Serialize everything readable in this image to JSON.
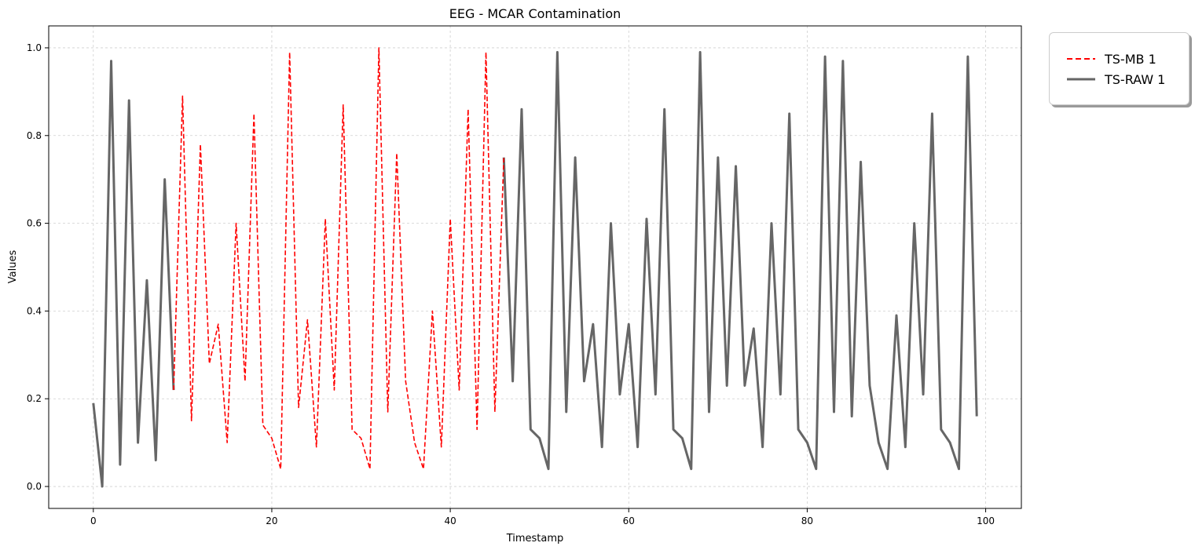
{
  "chart_data": {
    "type": "line",
    "title": "EEG - MCAR Contamination",
    "xlabel": "Timestamp",
    "ylabel": "Values",
    "xlim": [
      -5,
      104
    ],
    "ylim": [
      -0.05,
      1.05
    ],
    "x_ticks": [
      0,
      20,
      40,
      60,
      80,
      100
    ],
    "y_ticks": [
      0.0,
      0.2,
      0.4,
      0.6,
      0.8,
      1.0
    ],
    "x_tick_labels": [
      "0",
      "20",
      "40",
      "60",
      "80",
      "100"
    ],
    "y_tick_labels": [
      "0.0",
      "0.2",
      "0.4",
      "0.6",
      "0.8",
      "1.0"
    ],
    "grid": true,
    "legend_position": "outside-top-right",
    "series": [
      {
        "name": "TS-MB 1",
        "color": "#ff0000",
        "style": "dashed",
        "x": [
          9,
          10,
          11,
          12,
          13,
          14,
          15,
          16,
          17,
          18,
          19,
          20,
          21,
          22,
          23,
          24,
          25,
          26,
          27,
          28,
          29,
          30,
          31,
          32,
          33,
          34,
          35,
          36,
          37,
          38,
          39,
          40,
          41,
          42,
          43,
          44,
          45,
          46
        ],
        "values": [
          0.22,
          0.89,
          0.15,
          0.78,
          0.28,
          0.37,
          0.1,
          0.6,
          0.24,
          0.85,
          0.14,
          0.11,
          0.04,
          0.99,
          0.18,
          0.38,
          0.09,
          0.61,
          0.22,
          0.87,
          0.13,
          0.11,
          0.04,
          1.0,
          0.17,
          0.76,
          0.24,
          0.1,
          0.04,
          0.4,
          0.09,
          0.61,
          0.22,
          0.86,
          0.13,
          0.99,
          0.17,
          0.75
        ]
      },
      {
        "name": "TS-RAW 1",
        "color": "#666666",
        "style": "solid",
        "segments": [
          {
            "x": [
              0,
              1,
              2,
              3,
              4,
              5,
              6,
              7,
              8,
              9
            ],
            "values": [
              0.19,
              0.0,
              0.97,
              0.05,
              0.88,
              0.1,
              0.47,
              0.06,
              0.7,
              0.22
            ]
          },
          {
            "x": [
              46,
              47,
              48,
              49,
              50,
              51,
              52,
              53,
              54,
              55,
              56,
              57,
              58,
              59,
              60,
              61,
              62,
              63,
              64,
              65,
              66,
              67,
              68,
              69,
              70,
              71,
              72,
              73,
              74,
              75,
              76,
              77,
              78,
              79,
              80,
              81,
              82,
              83,
              84,
              85,
              86,
              87,
              88,
              89,
              90,
              91,
              92,
              93,
              94,
              95,
              96,
              97,
              98,
              99
            ],
            "values": [
              0.75,
              0.24,
              0.86,
              0.13,
              0.11,
              0.04,
              0.99,
              0.17,
              0.75,
              0.24,
              0.37,
              0.09,
              0.6,
              0.21,
              0.37,
              0.09,
              0.61,
              0.21,
              0.86,
              0.13,
              0.11,
              0.04,
              0.99,
              0.17,
              0.75,
              0.23,
              0.73,
              0.23,
              0.36,
              0.09,
              0.6,
              0.21,
              0.85,
              0.13,
              0.1,
              0.04,
              0.98,
              0.17,
              0.97,
              0.16,
              0.74,
              0.23,
              0.1,
              0.04,
              0.39,
              0.09,
              0.6,
              0.21,
              0.85,
              0.13,
              0.1,
              0.04,
              0.98,
              0.16
            ]
          }
        ]
      }
    ]
  }
}
